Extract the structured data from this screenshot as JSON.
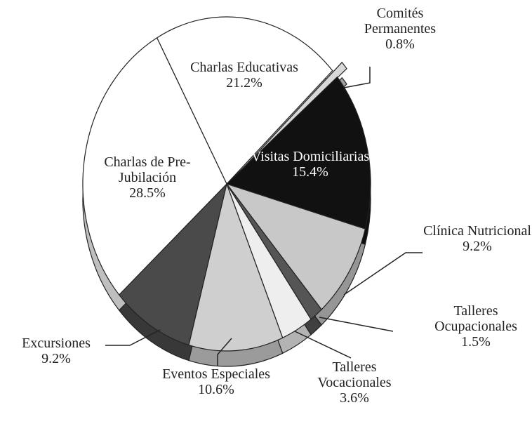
{
  "chart_data": {
    "type": "pie",
    "categories": [
      "Charlas Educativas",
      "Comités Permanentes",
      "Visitas Domiciliarias",
      "Clínica Nutricional",
      "Talleres Ocupacionales",
      "Talleres Vocacionales",
      "Eventos Especiales",
      "Excursiones",
      "Charlas de Pre-Jubilación"
    ],
    "values": [
      21.2,
      0.8,
      15.4,
      9.2,
      1.5,
      3.6,
      10.6,
      9.2,
      28.5
    ],
    "value_labels": [
      "21.2%",
      "0.8%",
      "15.4%",
      "9.2%",
      "1.5%",
      "3.6%",
      "10.6%",
      "9.2%",
      "28.5%"
    ],
    "colors": [
      "#ffffff",
      "#d8d8d8",
      "#111111",
      "#c8c8c8",
      "#555555",
      "#eeeeee",
      "#cfcfcf",
      "#4a4a4a",
      "#ffffff"
    ]
  }
}
